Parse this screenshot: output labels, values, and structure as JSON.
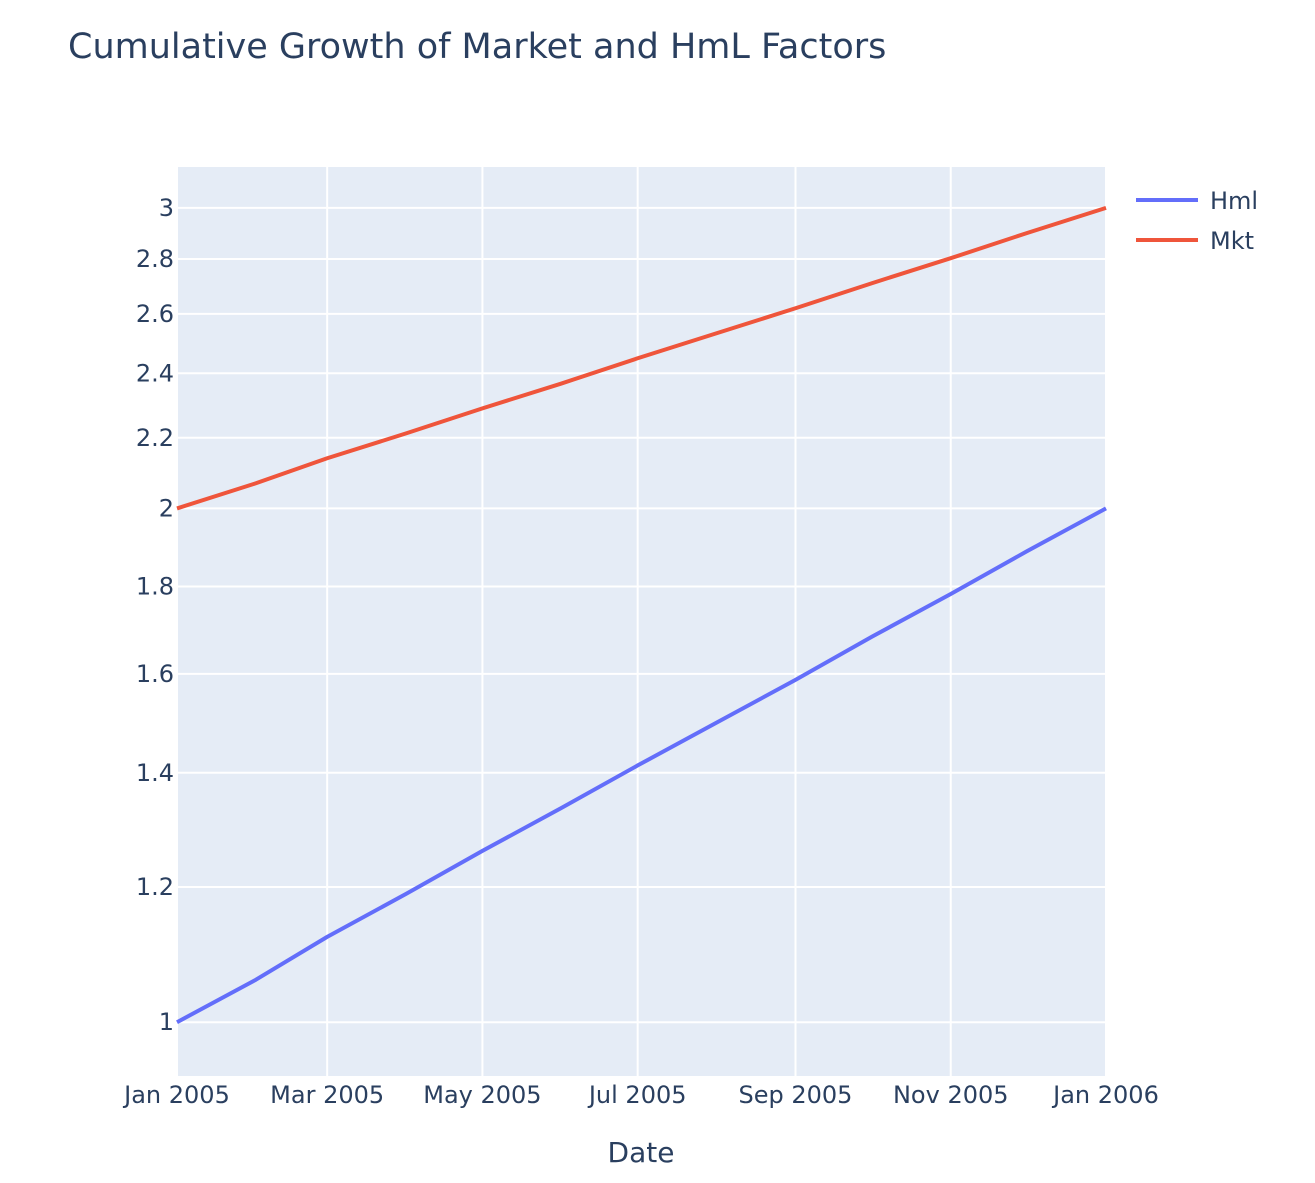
{
  "chart_data": {
    "type": "line",
    "title": "Cumulative Growth of Market and HmL Factors",
    "xlabel": "Date",
    "ylabel": "",
    "x_axis_type": "date",
    "y_axis_scale": "log",
    "xlim": [
      "2005-01-01",
      "2006-01-01"
    ],
    "ylim": [
      0.93,
      3.17
    ],
    "x_ticks": [
      {
        "value": "2005-01-01",
        "label": "Jan 2005"
      },
      {
        "value": "2005-03-01",
        "label": "Mar 2005"
      },
      {
        "value": "2005-05-01",
        "label": "May 2005"
      },
      {
        "value": "2005-07-01",
        "label": "Jul 2005"
      },
      {
        "value": "2005-09-01",
        "label": "Sep 2005"
      },
      {
        "value": "2005-11-01",
        "label": "Nov 2005"
      },
      {
        "value": "2006-01-01",
        "label": "Jan 2006"
      }
    ],
    "y_ticks": [
      {
        "value": 1,
        "label": "1"
      },
      {
        "value": 1.2,
        "label": "1.2"
      },
      {
        "value": 1.4,
        "label": "1.4"
      },
      {
        "value": 1.6,
        "label": "1.6"
      },
      {
        "value": 1.8,
        "label": "1.8"
      },
      {
        "value": 2,
        "label": "2"
      },
      {
        "value": 2.2,
        "label": "2.2"
      },
      {
        "value": 2.4,
        "label": "2.4"
      },
      {
        "value": 2.6,
        "label": "2.6"
      },
      {
        "value": 2.8,
        "label": "2.8"
      },
      {
        "value": 3,
        "label": "3"
      }
    ],
    "grid": true,
    "legend_position": "top-right",
    "background_color": "#e5ecf6",
    "series": [
      {
        "name": "Hml",
        "color": "#636efa",
        "x": [
          "2005-01-01",
          "2005-02-01",
          "2005-03-01",
          "2005-04-01",
          "2005-05-01",
          "2005-06-01",
          "2005-07-01",
          "2005-08-01",
          "2005-09-01",
          "2005-10-01",
          "2005-11-01",
          "2005-12-01",
          "2006-01-01"
        ],
        "y": [
          1.0,
          1.059,
          1.122,
          1.189,
          1.26,
          1.335,
          1.414,
          1.498,
          1.587,
          1.682,
          1.782,
          1.888,
          2.0
        ]
      },
      {
        "name": "Mkt",
        "color": "#ef553b",
        "x": [
          "2005-01-01",
          "2005-02-01",
          "2005-03-01",
          "2005-04-01",
          "2005-05-01",
          "2005-06-01",
          "2005-07-01",
          "2005-08-01",
          "2005-09-01",
          "2005-10-01",
          "2005-11-01",
          "2005-12-01",
          "2006-01-01"
        ],
        "y": [
          2.0,
          2.069,
          2.14,
          2.213,
          2.289,
          2.367,
          2.449,
          2.533,
          2.62,
          2.71,
          2.803,
          2.9,
          3.0
        ]
      }
    ]
  }
}
